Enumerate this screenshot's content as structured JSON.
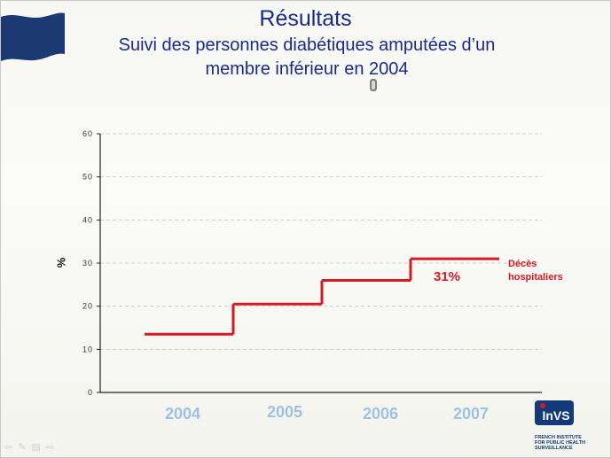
{
  "slide": {
    "title": "Résultats",
    "subtitle_line1": "Suivi des personnes diabétiques amputées d’un",
    "subtitle_line2": "membre inférieur en 2004"
  },
  "annotations": {
    "value_label": "31%",
    "series_label_line1": "Décès",
    "series_label_line2": "hospitaliers"
  },
  "logo": {
    "brand": "InVS",
    "line1": "FRENCH INSTITUTE",
    "line2": "FOR PUBLIC HEALTH",
    "line3": "SURVEILLANCE"
  },
  "colors": {
    "title": "#1a2a8c",
    "series": "#d71921",
    "year_labels": "#9ec1e6",
    "axis": "#222222",
    "grid": "#cfcfcf"
  },
  "icons": [
    "flag-icon",
    "speaker-icon",
    "nav-prev-icon",
    "nav-pen-icon",
    "nav-menu-icon",
    "nav-next-icon"
  ],
  "chart_data": {
    "type": "line",
    "step": true,
    "title": "",
    "xlabel": "",
    "ylabel": "%",
    "ylim": [
      0,
      60
    ],
    "yticks": [
      "0",
      "10",
      "20",
      "30",
      "40",
      "50",
      "60"
    ],
    "grid": "horizontal dashed",
    "categories": [
      "2004",
      "2005",
      "2006",
      "2007"
    ],
    "series": [
      {
        "name": "Décès hospitaliers",
        "values": [
          13.5,
          20.5,
          26,
          31
        ]
      }
    ]
  }
}
